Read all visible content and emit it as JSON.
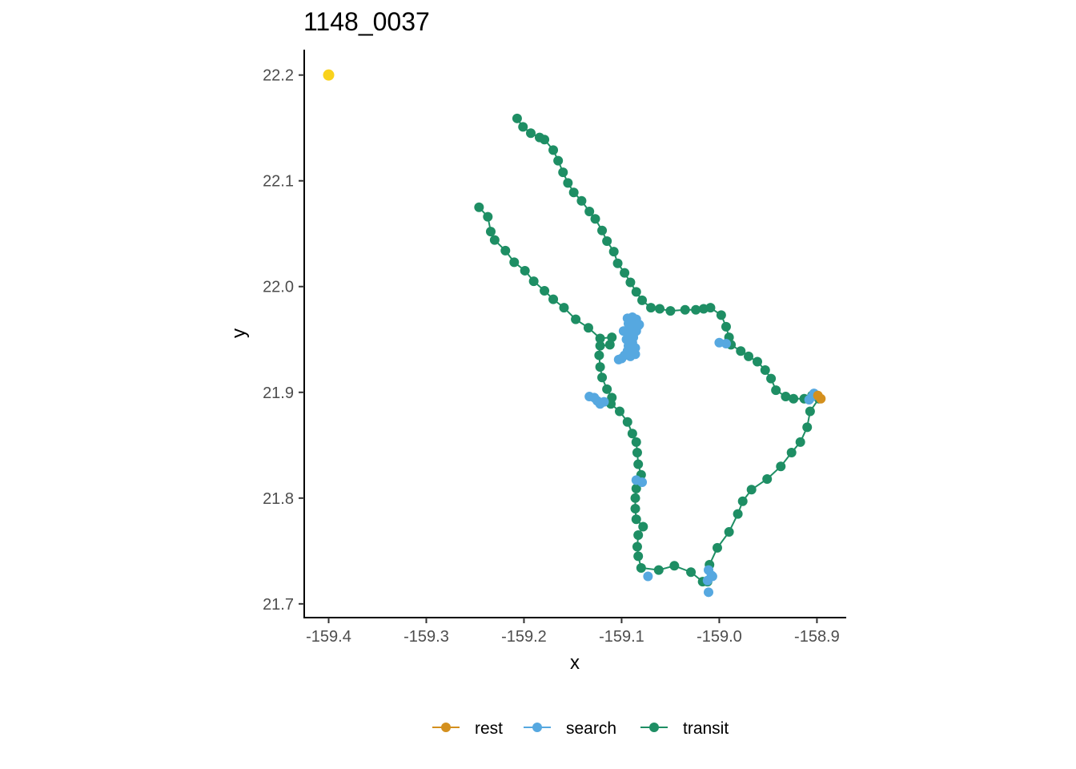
{
  "chart_data": {
    "type": "scatter",
    "title": "1148_0037",
    "xlabel": "x",
    "ylabel": "y",
    "xlim": [
      -159.425,
      -158.87
    ],
    "ylim": [
      21.687,
      22.224
    ],
    "xticks": [
      -159.4,
      -159.3,
      -159.2,
      -159.1,
      -159.0,
      -158.9
    ],
    "xtick_labels": [
      "-159.4",
      "-159.3",
      "-159.2",
      "-159.1",
      "-159.0",
      "-158.9"
    ],
    "yticks": [
      21.7,
      21.8,
      21.9,
      22.0,
      22.1,
      22.2
    ],
    "ytick_labels": [
      "21.7",
      "21.8",
      "21.9",
      "22.0",
      "22.1",
      "22.2"
    ],
    "grid": false,
    "legend": "bottom",
    "colors": {
      "rest": "#D4901E",
      "search": "#56A8E0",
      "transit": "#1E8E64",
      "start": "#F9D21C"
    },
    "start_point": {
      "x": -159.4,
      "y": 22.2,
      "color": "#F9D21C"
    },
    "series": [
      {
        "name": "rest",
        "color": "#D4901E",
        "points": [
          [
            -158.896,
            21.894
          ],
          [
            -158.899,
            21.897
          ]
        ]
      },
      {
        "name": "search",
        "color": "#56A8E0",
        "points": [
          [
            -159.094,
            21.97
          ],
          [
            -159.089,
            21.971
          ],
          [
            -159.085,
            21.969
          ],
          [
            -159.093,
            21.965
          ],
          [
            -159.087,
            21.963
          ],
          [
            -159.082,
            21.964
          ],
          [
            -159.09,
            21.96
          ],
          [
            -159.098,
            21.958
          ],
          [
            -159.085,
            21.958
          ],
          [
            -159.092,
            21.955
          ],
          [
            -159.088,
            21.952
          ],
          [
            -159.095,
            21.95
          ],
          [
            -159.089,
            21.947
          ],
          [
            -159.093,
            21.944
          ],
          [
            -159.086,
            21.942
          ],
          [
            -159.094,
            21.939
          ],
          [
            -159.088,
            21.937
          ],
          [
            -159.097,
            21.935
          ],
          [
            -159.091,
            21.934
          ],
          [
            -159.086,
            21.936
          ],
          [
            -159.1,
            21.932
          ],
          [
            -159.103,
            21.931
          ],
          [
            -159.083,
            21.963
          ],
          [
            -159.091,
            21.967
          ],
          [
            -159.133,
            21.896
          ],
          [
            -159.128,
            21.895
          ],
          [
            -159.125,
            21.892
          ],
          [
            -159.122,
            21.889
          ],
          [
            -159.118,
            21.891
          ],
          [
            -159.0,
            21.947
          ],
          [
            -158.993,
            21.946
          ],
          [
            -159.085,
            21.817
          ],
          [
            -159.079,
            21.815
          ],
          [
            -159.073,
            21.726
          ],
          [
            -159.011,
            21.732
          ],
          [
            -159.008,
            21.727
          ],
          [
            -159.012,
            21.722
          ],
          [
            -159.011,
            21.711
          ],
          [
            -159.007,
            21.726
          ],
          [
            -158.908,
            21.893
          ],
          [
            -158.905,
            21.896
          ],
          [
            -158.903,
            21.899
          ],
          [
            -158.9,
            21.897
          ]
        ]
      },
      {
        "name": "transit",
        "color": "#1E8E64",
        "paths": [
          [
            [
              -159.207,
              22.159
            ],
            [
              -159.201,
              22.151
            ],
            [
              -159.193,
              22.145
            ],
            [
              -159.184,
              22.141
            ],
            [
              -159.179,
              22.139
            ],
            [
              -159.17,
              22.129
            ],
            [
              -159.165,
              22.119
            ],
            [
              -159.16,
              22.108
            ],
            [
              -159.155,
              22.098
            ],
            [
              -159.149,
              22.089
            ],
            [
              -159.141,
              22.081
            ],
            [
              -159.133,
              22.071
            ],
            [
              -159.127,
              22.064
            ],
            [
              -159.12,
              22.053
            ],
            [
              -159.115,
              22.043
            ],
            [
              -159.108,
              22.033
            ],
            [
              -159.104,
              22.022
            ],
            [
              -159.097,
              22.013
            ],
            [
              -159.091,
              22.004
            ],
            [
              -159.085,
              21.995
            ],
            [
              -159.079,
              21.987
            ],
            [
              -159.07,
              21.98
            ],
            [
              -159.061,
              21.979
            ],
            [
              -159.05,
              21.977
            ],
            [
              -159.035,
              21.978
            ],
            [
              -159.024,
              21.978
            ],
            [
              -159.016,
              21.979
            ],
            [
              -159.009,
              21.98
            ],
            [
              -158.998,
              21.973
            ],
            [
              -158.993,
              21.962
            ],
            [
              -158.99,
              21.952
            ],
            [
              -158.988,
              21.945
            ],
            [
              -158.978,
              21.939
            ],
            [
              -158.97,
              21.934
            ],
            [
              -158.961,
              21.929
            ],
            [
              -158.953,
              21.921
            ],
            [
              -158.947,
              21.913
            ],
            [
              -158.942,
              21.902
            ],
            [
              -158.932,
              21.896
            ],
            [
              -158.924,
              21.894
            ],
            [
              -158.913,
              21.894
            ],
            [
              -158.905,
              21.897
            ]
          ],
          [
            [
              -158.898,
              21.894
            ],
            [
              -158.907,
              21.882
            ],
            [
              -158.91,
              21.867
            ],
            [
              -158.917,
              21.853
            ],
            [
              -158.926,
              21.843
            ],
            [
              -158.937,
              21.83
            ],
            [
              -158.951,
              21.818
            ],
            [
              -158.967,
              21.808
            ],
            [
              -158.976,
              21.797
            ],
            [
              -158.981,
              21.785
            ],
            [
              -158.99,
              21.768
            ],
            [
              -159.002,
              21.753
            ],
            [
              -159.01,
              21.737
            ],
            [
              -159.012,
              21.721
            ],
            [
              -159.017,
              21.721
            ],
            [
              -159.029,
              21.73
            ],
            [
              -159.046,
              21.736
            ],
            [
              -159.062,
              21.732
            ],
            [
              -159.08,
              21.734
            ],
            [
              -159.083,
              21.745
            ],
            [
              -159.084,
              21.754
            ],
            [
              -159.083,
              21.765
            ],
            [
              -159.078,
              21.773
            ],
            [
              -159.085,
              21.78
            ],
            [
              -159.086,
              21.79
            ],
            [
              -159.086,
              21.8
            ],
            [
              -159.085,
              21.809
            ],
            [
              -159.08,
              21.822
            ],
            [
              -159.083,
              21.832
            ],
            [
              -159.084,
              21.843
            ],
            [
              -159.085,
              21.853
            ],
            [
              -159.089,
              21.861
            ],
            [
              -159.094,
              21.872
            ],
            [
              -159.102,
              21.882
            ],
            [
              -159.111,
              21.889
            ],
            [
              -159.11,
              21.895
            ],
            [
              -159.115,
              21.903
            ],
            [
              -159.12,
              21.914
            ],
            [
              -159.122,
              21.924
            ],
            [
              -159.123,
              21.935
            ],
            [
              -159.122,
              21.944
            ],
            [
              -159.112,
              21.945
            ],
            [
              -159.11,
              21.952
            ],
            [
              -159.122,
              21.951
            ],
            [
              -159.134,
              21.961
            ],
            [
              -159.147,
              21.969
            ],
            [
              -159.159,
              21.98
            ],
            [
              -159.17,
              21.988
            ],
            [
              -159.179,
              21.996
            ],
            [
              -159.19,
              22.005
            ],
            [
              -159.199,
              22.015
            ],
            [
              -159.21,
              22.023
            ],
            [
              -159.219,
              22.034
            ],
            [
              -159.23,
              22.044
            ],
            [
              -159.234,
              22.052
            ],
            [
              -159.237,
              22.066
            ],
            [
              -159.246,
              22.075
            ]
          ]
        ]
      }
    ]
  }
}
